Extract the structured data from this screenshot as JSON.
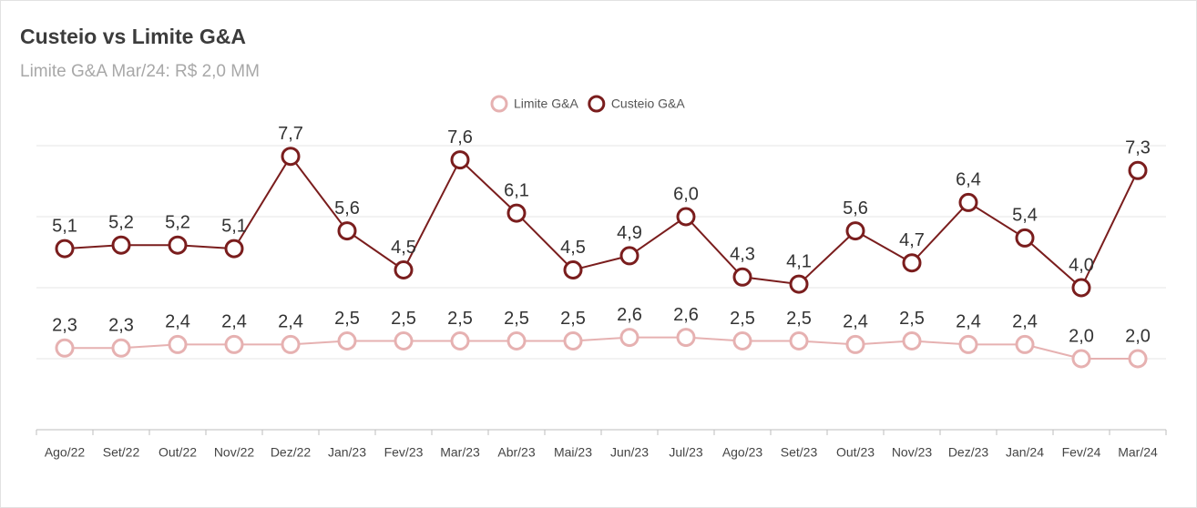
{
  "chart_data": {
    "type": "line",
    "title": "Custeio vs Limite G&A",
    "subtitle": "Limite G&A Mar/24: R$ 2,0 MM",
    "categories": [
      "Ago/22",
      "Set/22",
      "Out/22",
      "Nov/22",
      "Dez/22",
      "Jan/23",
      "Fev/23",
      "Mar/23",
      "Abr/23",
      "Mai/23",
      "Jun/23",
      "Jul/23",
      "Ago/23",
      "Set/23",
      "Out/23",
      "Nov/23",
      "Dez/23",
      "Jan/24",
      "Fev/24",
      "Mar/24"
    ],
    "series": [
      {
        "name": "Limite G&A",
        "color": "#e6b1b1",
        "values": [
          2.3,
          2.3,
          2.4,
          2.4,
          2.4,
          2.5,
          2.5,
          2.5,
          2.5,
          2.5,
          2.6,
          2.6,
          2.5,
          2.5,
          2.4,
          2.5,
          2.4,
          2.4,
          2.0,
          2.0
        ],
        "value_labels": [
          "2,3",
          "2,3",
          "2,4",
          "2,4",
          "2,4",
          "2,5",
          "2,5",
          "2,5",
          "2,5",
          "2,5",
          "2,6",
          "2,6",
          "2,5",
          "2,5",
          "2,4",
          "2,5",
          "2,4",
          "2,4",
          "2,0",
          "2,0"
        ]
      },
      {
        "name": "Custeio G&A",
        "color": "#7a1d1d",
        "values": [
          5.1,
          5.2,
          5.2,
          5.1,
          7.7,
          5.6,
          4.5,
          7.6,
          6.1,
          4.5,
          4.9,
          6.0,
          4.3,
          4.1,
          5.6,
          4.7,
          6.4,
          5.4,
          4.0,
          7.3
        ],
        "value_labels": [
          "5,1",
          "5,2",
          "5,2",
          "5,1",
          "7,7",
          "5,6",
          "4,5",
          "7,6",
          "6,1",
          "4,5",
          "4,9",
          "6,0",
          "4,3",
          "4,1",
          "5,6",
          "4,7",
          "6,4",
          "5,4",
          "4,0",
          "7,3"
        ]
      }
    ],
    "ylim": [
      0,
      8
    ],
    "yticks": [
      0,
      2,
      4,
      6,
      8
    ],
    "grid": true,
    "legend": "top"
  }
}
